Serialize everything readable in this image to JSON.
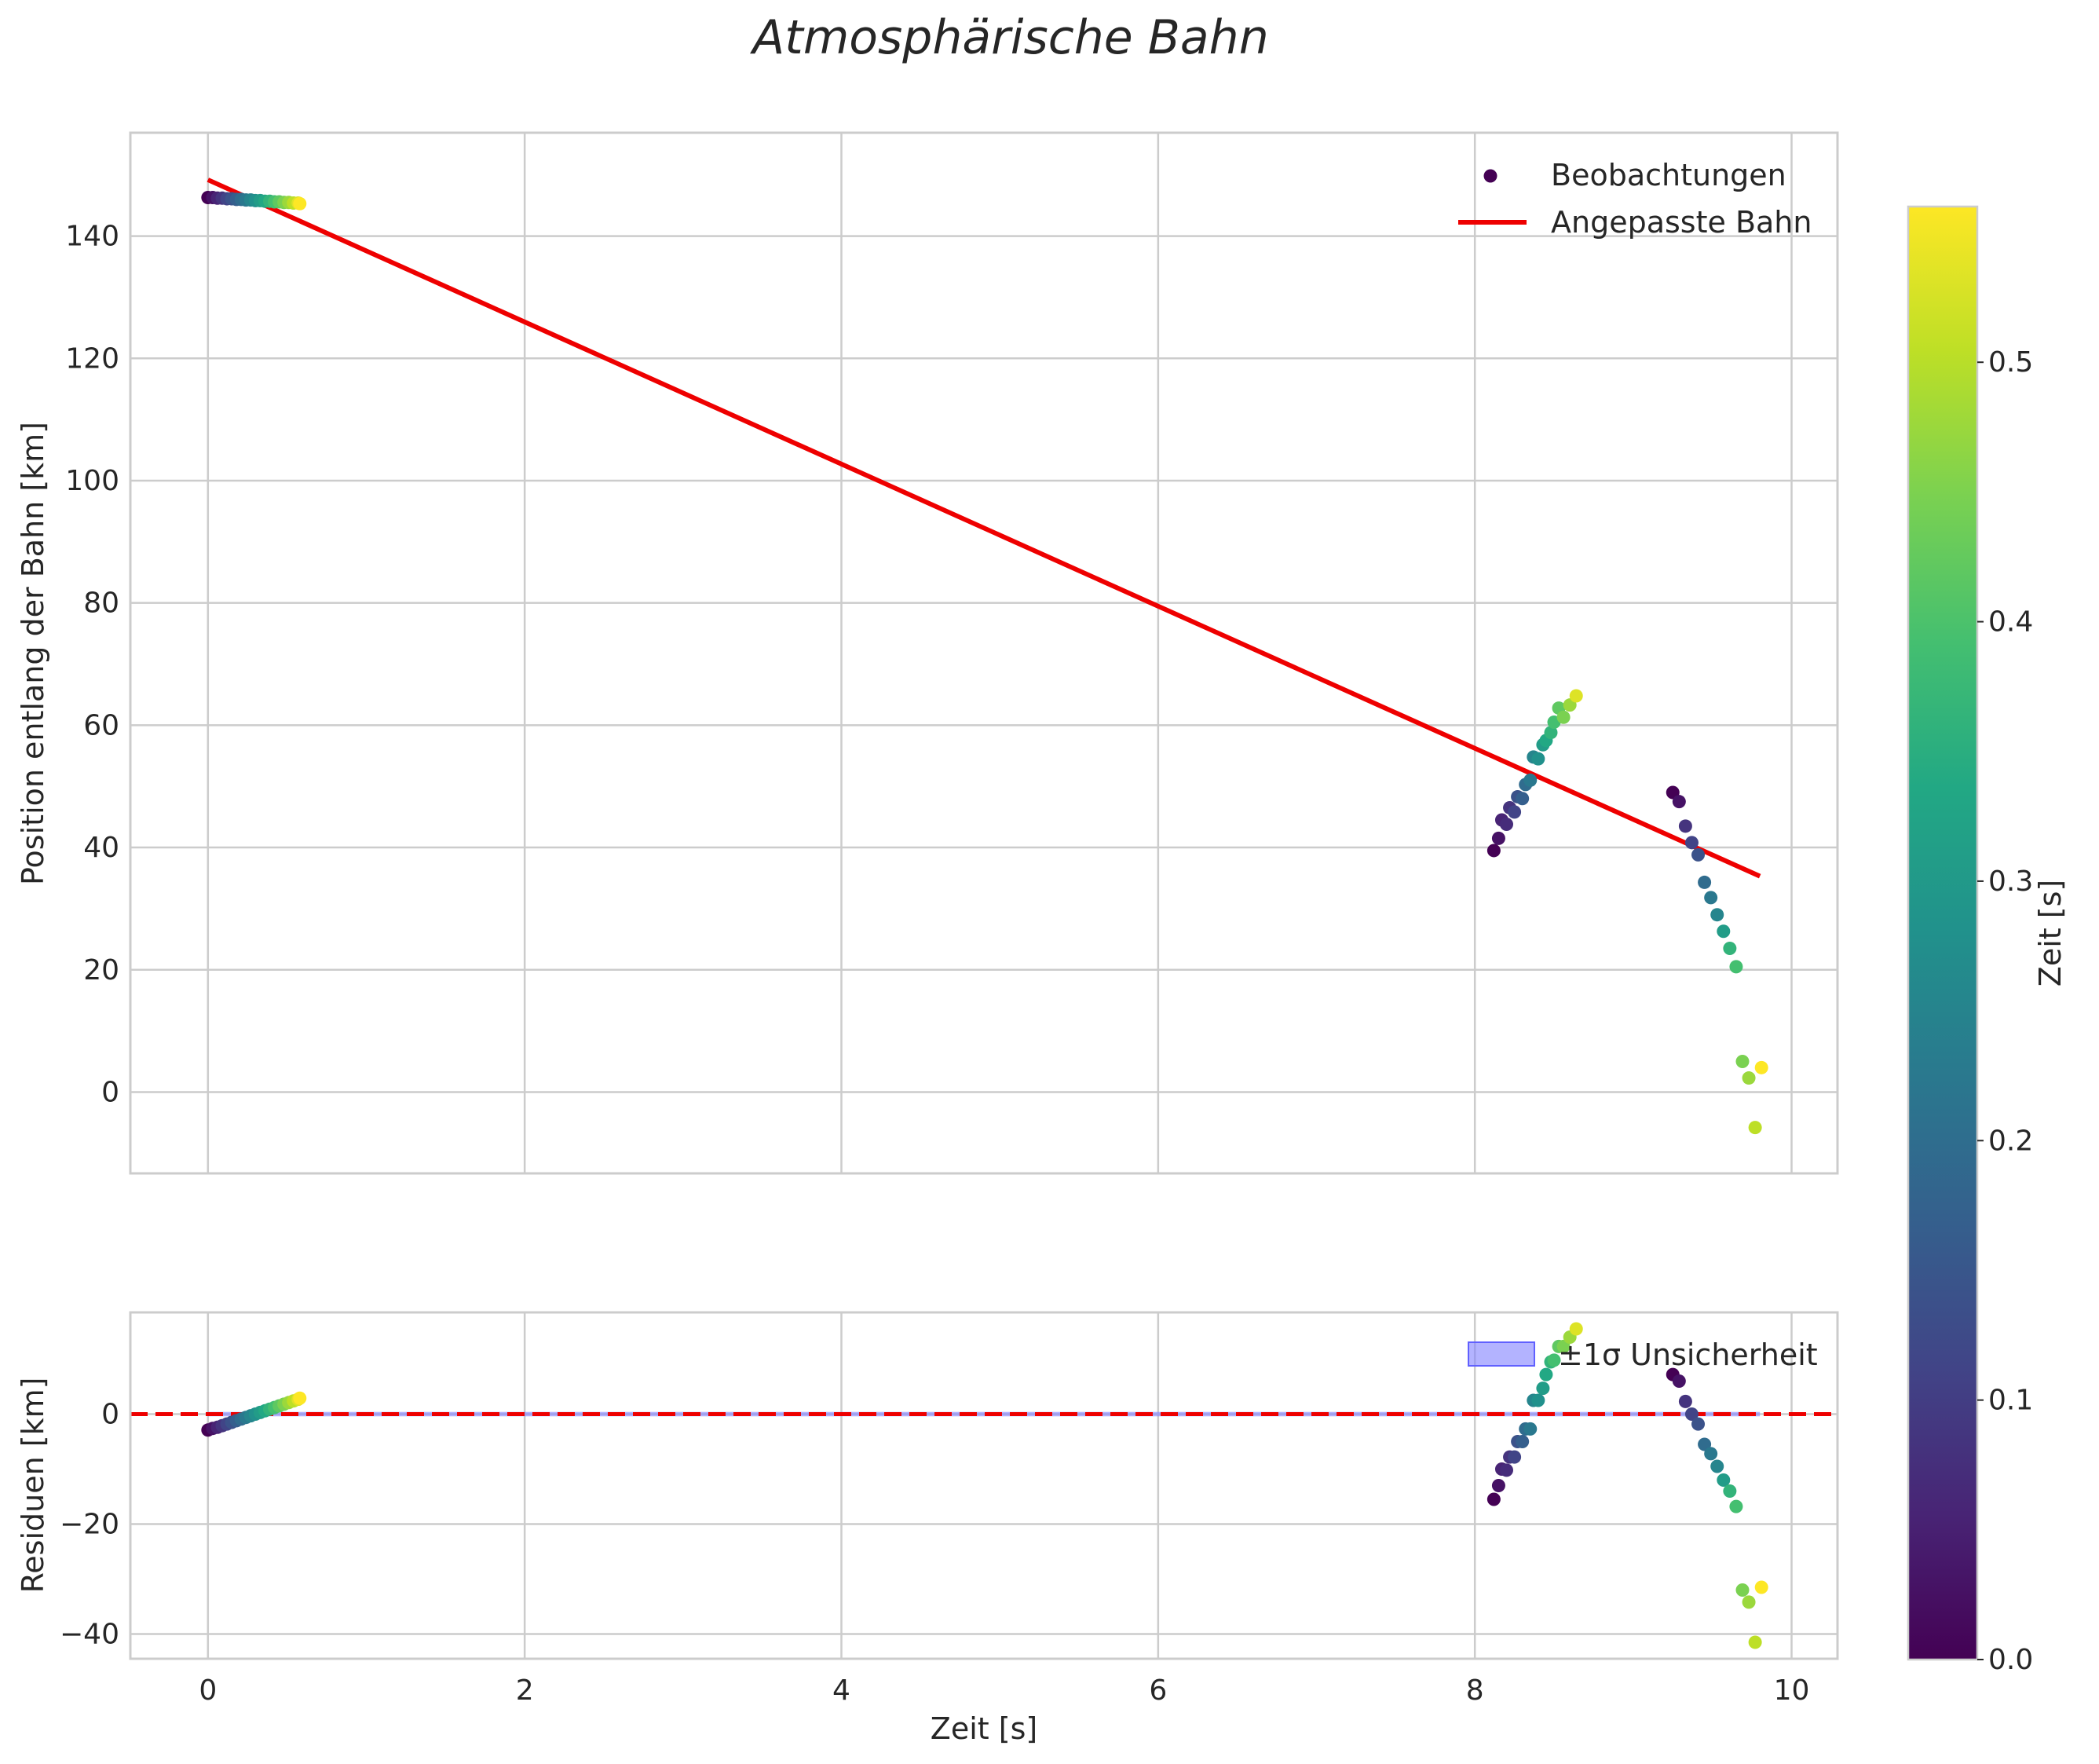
{
  "chart_data": [
    {
      "type": "scatter",
      "panel": "top",
      "title": "Atmosphärische Bahn",
      "xlabel": "",
      "ylabel": "Position entlang der Bahn [km]",
      "xlim": [
        -0.49,
        10.29
      ],
      "ylim": [
        -13.3,
        156.9
      ],
      "xticks": [
        "0",
        "2",
        "4",
        "6",
        "8",
        "10"
      ],
      "yticks": [
        "0",
        "20",
        "40",
        "60",
        "80",
        "100",
        "120",
        "140"
      ],
      "grid": true,
      "legend": {
        "placement": "top-right",
        "entries": [
          "Beobachtungen",
          "Angepasste Bahn"
        ]
      },
      "series": [
        {
          "name": "Beobachtungen",
          "kind": "scatter",
          "colormap": "viridis",
          "points": [
            {
              "x": 0.0,
              "y": 146.3,
              "c": 0.0
            },
            {
              "x": 0.03,
              "y": 146.3,
              "c": 0.028
            },
            {
              "x": 0.06,
              "y": 146.2,
              "c": 0.056
            },
            {
              "x": 0.09,
              "y": 146.2,
              "c": 0.084
            },
            {
              "x": 0.12,
              "y": 146.1,
              "c": 0.112
            },
            {
              "x": 0.15,
              "y": 146.1,
              "c": 0.14
            },
            {
              "x": 0.18,
              "y": 146.0,
              "c": 0.168
            },
            {
              "x": 0.21,
              "y": 146.0,
              "c": 0.196
            },
            {
              "x": 0.24,
              "y": 145.9,
              "c": 0.224
            },
            {
              "x": 0.27,
              "y": 145.9,
              "c": 0.252
            },
            {
              "x": 0.3,
              "y": 145.8,
              "c": 0.28
            },
            {
              "x": 0.33,
              "y": 145.8,
              "c": 0.308
            },
            {
              "x": 0.36,
              "y": 145.7,
              "c": 0.336
            },
            {
              "x": 0.39,
              "y": 145.7,
              "c": 0.364
            },
            {
              "x": 0.42,
              "y": 145.6,
              "c": 0.392
            },
            {
              "x": 0.45,
              "y": 145.6,
              "c": 0.42
            },
            {
              "x": 0.48,
              "y": 145.5,
              "c": 0.448
            },
            {
              "x": 0.51,
              "y": 145.5,
              "c": 0.476
            },
            {
              "x": 0.54,
              "y": 145.4,
              "c": 0.504
            },
            {
              "x": 0.57,
              "y": 145.4,
              "c": 0.532
            },
            {
              "x": 0.58,
              "y": 145.3,
              "c": 0.56
            },
            {
              "x": 8.12,
              "y": 39.5,
              "c": 0.0
            },
            {
              "x": 8.15,
              "y": 41.5,
              "c": 0.028
            },
            {
              "x": 8.17,
              "y": 44.5,
              "c": 0.056
            },
            {
              "x": 8.2,
              "y": 43.8,
              "c": 0.07
            },
            {
              "x": 8.22,
              "y": 46.5,
              "c": 0.084
            },
            {
              "x": 8.25,
              "y": 45.8,
              "c": 0.112
            },
            {
              "x": 8.27,
              "y": 48.3,
              "c": 0.14
            },
            {
              "x": 8.3,
              "y": 48.0,
              "c": 0.168
            },
            {
              "x": 8.32,
              "y": 50.3,
              "c": 0.196
            },
            {
              "x": 8.35,
              "y": 51.0,
              "c": 0.224
            },
            {
              "x": 8.37,
              "y": 54.8,
              "c": 0.252
            },
            {
              "x": 8.4,
              "y": 54.5,
              "c": 0.28
            },
            {
              "x": 8.43,
              "y": 56.8,
              "c": 0.308
            },
            {
              "x": 8.45,
              "y": 57.5,
              "c": 0.336
            },
            {
              "x": 8.48,
              "y": 58.8,
              "c": 0.364
            },
            {
              "x": 8.5,
              "y": 60.5,
              "c": 0.392
            },
            {
              "x": 8.53,
              "y": 62.8,
              "c": 0.42
            },
            {
              "x": 8.56,
              "y": 61.3,
              "c": 0.448
            },
            {
              "x": 8.6,
              "y": 63.3,
              "c": 0.476
            },
            {
              "x": 8.64,
              "y": 64.8,
              "c": 0.532
            },
            {
              "x": 9.25,
              "y": 49.0,
              "c": 0.0
            },
            {
              "x": 9.29,
              "y": 47.5,
              "c": 0.028
            },
            {
              "x": 9.33,
              "y": 43.5,
              "c": 0.084
            },
            {
              "x": 9.37,
              "y": 40.8,
              "c": 0.112
            },
            {
              "x": 9.41,
              "y": 38.8,
              "c": 0.14
            },
            {
              "x": 9.45,
              "y": 34.3,
              "c": 0.196
            },
            {
              "x": 9.49,
              "y": 31.8,
              "c": 0.224
            },
            {
              "x": 9.53,
              "y": 29.0,
              "c": 0.252
            },
            {
              "x": 9.57,
              "y": 26.3,
              "c": 0.308
            },
            {
              "x": 9.61,
              "y": 23.5,
              "c": 0.364
            },
            {
              "x": 9.65,
              "y": 20.5,
              "c": 0.392
            },
            {
              "x": 9.69,
              "y": 5.0,
              "c": 0.448
            },
            {
              "x": 9.73,
              "y": 2.3,
              "c": 0.476
            },
            {
              "x": 9.77,
              "y": -5.8,
              "c": 0.504
            },
            {
              "x": 9.81,
              "y": 4.0,
              "c": 0.56
            }
          ]
        },
        {
          "name": "Angepasste Bahn",
          "kind": "line",
          "color": "#ee0000",
          "x": [
            0.0,
            9.8
          ],
          "y": [
            149.2,
            35.3
          ]
        }
      ]
    },
    {
      "type": "scatter",
      "panel": "bottom",
      "xlabel": "Zeit [s]",
      "ylabel": "Residuen [km]",
      "xlim": [
        -0.49,
        10.29
      ],
      "ylim": [
        -44.5,
        18.5
      ],
      "xticks": [
        "0",
        "2",
        "4",
        "6",
        "8",
        "10"
      ],
      "yticks": [
        "−40",
        "−20",
        "0"
      ],
      "grid": true,
      "legend": {
        "placement": "top-right",
        "entries": [
          "±1σ Unsicherheit"
        ]
      },
      "zero_line": {
        "y": 0,
        "color": "#ee0000",
        "style": "dashed"
      },
      "uncertainty_band": {
        "y_low": -0.4,
        "y_high": 0.4,
        "color": "#8080ff"
      },
      "series": [
        {
          "name": "Residuen",
          "kind": "scatter",
          "colormap": "viridis",
          "points": [
            {
              "x": 0.0,
              "y": -2.9,
              "c": 0.0
            },
            {
              "x": 0.03,
              "y": -2.6,
              "c": 0.028
            },
            {
              "x": 0.06,
              "y": -2.4,
              "c": 0.056
            },
            {
              "x": 0.09,
              "y": -2.1,
              "c": 0.084
            },
            {
              "x": 0.12,
              "y": -1.8,
              "c": 0.112
            },
            {
              "x": 0.15,
              "y": -1.5,
              "c": 0.14
            },
            {
              "x": 0.18,
              "y": -1.2,
              "c": 0.168
            },
            {
              "x": 0.21,
              "y": -0.9,
              "c": 0.196
            },
            {
              "x": 0.24,
              "y": -0.6,
              "c": 0.224
            },
            {
              "x": 0.27,
              "y": -0.3,
              "c": 0.252
            },
            {
              "x": 0.3,
              "y": 0.0,
              "c": 0.28
            },
            {
              "x": 0.33,
              "y": 0.3,
              "c": 0.308
            },
            {
              "x": 0.36,
              "y": 0.6,
              "c": 0.336
            },
            {
              "x": 0.39,
              "y": 0.9,
              "c": 0.364
            },
            {
              "x": 0.42,
              "y": 1.2,
              "c": 0.392
            },
            {
              "x": 0.45,
              "y": 1.5,
              "c": 0.42
            },
            {
              "x": 0.48,
              "y": 1.8,
              "c": 0.448
            },
            {
              "x": 0.51,
              "y": 2.1,
              "c": 0.476
            },
            {
              "x": 0.54,
              "y": 2.4,
              "c": 0.504
            },
            {
              "x": 0.57,
              "y": 2.7,
              "c": 0.532
            },
            {
              "x": 0.58,
              "y": 2.9,
              "c": 0.56
            },
            {
              "x": 8.12,
              "y": -15.5,
              "c": 0.0
            },
            {
              "x": 8.15,
              "y": -13.0,
              "c": 0.028
            },
            {
              "x": 8.17,
              "y": -10.0,
              "c": 0.056
            },
            {
              "x": 8.2,
              "y": -10.2,
              "c": 0.07
            },
            {
              "x": 8.22,
              "y": -7.8,
              "c": 0.084
            },
            {
              "x": 8.25,
              "y": -7.8,
              "c": 0.112
            },
            {
              "x": 8.27,
              "y": -5.0,
              "c": 0.14
            },
            {
              "x": 8.3,
              "y": -5.0,
              "c": 0.168
            },
            {
              "x": 8.32,
              "y": -2.7,
              "c": 0.196
            },
            {
              "x": 8.35,
              "y": -2.7,
              "c": 0.224
            },
            {
              "x": 8.37,
              "y": 2.5,
              "c": 0.252
            },
            {
              "x": 8.4,
              "y": 2.5,
              "c": 0.28
            },
            {
              "x": 8.43,
              "y": 4.7,
              "c": 0.308
            },
            {
              "x": 8.45,
              "y": 7.2,
              "c": 0.336
            },
            {
              "x": 8.48,
              "y": 9.5,
              "c": 0.364
            },
            {
              "x": 8.5,
              "y": 9.8,
              "c": 0.392
            },
            {
              "x": 8.53,
              "y": 12.3,
              "c": 0.42
            },
            {
              "x": 8.56,
              "y": 12.3,
              "c": 0.448
            },
            {
              "x": 8.6,
              "y": 14.0,
              "c": 0.476
            },
            {
              "x": 8.64,
              "y": 15.5,
              "c": 0.532
            },
            {
              "x": 9.25,
              "y": 7.2,
              "c": 0.0
            },
            {
              "x": 9.29,
              "y": 6.0,
              "c": 0.028
            },
            {
              "x": 9.33,
              "y": 2.3,
              "c": 0.084
            },
            {
              "x": 9.37,
              "y": 0.0,
              "c": 0.112
            },
            {
              "x": 9.41,
              "y": -1.8,
              "c": 0.14
            },
            {
              "x": 9.45,
              "y": -5.5,
              "c": 0.196
            },
            {
              "x": 9.49,
              "y": -7.2,
              "c": 0.224
            },
            {
              "x": 9.53,
              "y": -9.5,
              "c": 0.252
            },
            {
              "x": 9.57,
              "y": -12.0,
              "c": 0.308
            },
            {
              "x": 9.61,
              "y": -14.0,
              "c": 0.364
            },
            {
              "x": 9.65,
              "y": -16.8,
              "c": 0.392
            },
            {
              "x": 9.69,
              "y": -32.0,
              "c": 0.448
            },
            {
              "x": 9.73,
              "y": -34.2,
              "c": 0.476
            },
            {
              "x": 9.77,
              "y": -41.5,
              "c": 0.504
            },
            {
              "x": 9.81,
              "y": -31.5,
              "c": 0.56
            }
          ]
        }
      ]
    }
  ],
  "colorbar": {
    "label": "Zeit [s]",
    "range": [
      0.0,
      0.56
    ],
    "ticks": [
      "0.0",
      "0.1",
      "0.2",
      "0.3",
      "0.4",
      "0.5"
    ]
  }
}
